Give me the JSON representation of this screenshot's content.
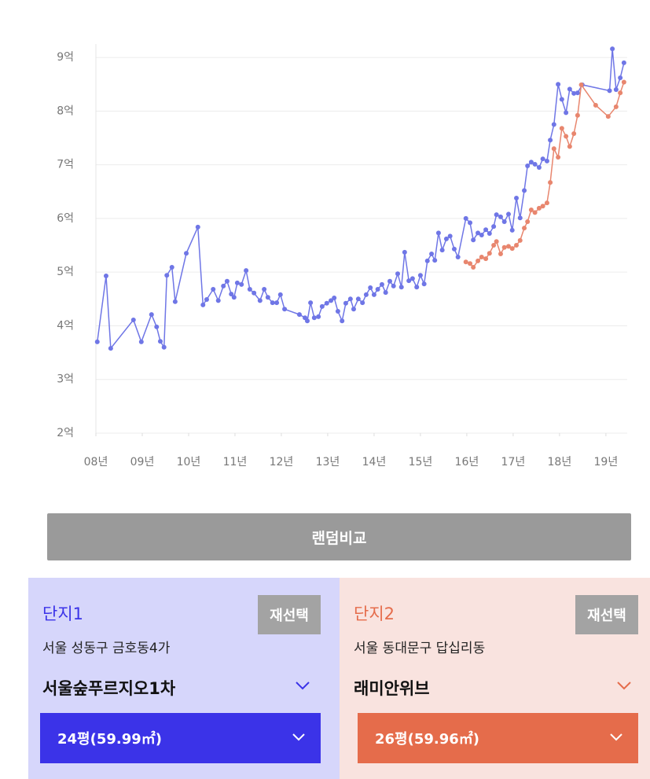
{
  "chart_data": {
    "type": "line",
    "xlim": [
      2008,
      2019.46
    ],
    "ylim": [
      2,
      9.25
    ],
    "xticks": [
      {
        "value": 2008,
        "label": "08년"
      },
      {
        "value": 2009,
        "label": "09년"
      },
      {
        "value": 2010,
        "label": "10년"
      },
      {
        "value": 2011,
        "label": "11년"
      },
      {
        "value": 2012,
        "label": "12년"
      },
      {
        "value": 2013,
        "label": "13년"
      },
      {
        "value": 2014,
        "label": "14년"
      },
      {
        "value": 2015,
        "label": "15년"
      },
      {
        "value": 2016,
        "label": "16년"
      },
      {
        "value": 2017,
        "label": "17년"
      },
      {
        "value": 2018,
        "label": "18년"
      },
      {
        "value": 2019,
        "label": "19년"
      }
    ],
    "yticks": [
      {
        "value": 2,
        "label": "2억"
      },
      {
        "value": 3,
        "label": "3억"
      },
      {
        "value": 4,
        "label": "4억"
      },
      {
        "value": 5,
        "label": "5억"
      },
      {
        "value": 6,
        "label": "6억"
      },
      {
        "value": 7,
        "label": "7억"
      },
      {
        "value": 8,
        "label": "8억"
      },
      {
        "value": 9,
        "label": "9억"
      }
    ],
    "grid": true,
    "series": [
      {
        "color": "#6f76e6",
        "x": [
          2008.03,
          2008.22,
          2008.32,
          2008.81,
          2008.98,
          2009.2,
          2009.31,
          2009.39,
          2009.47,
          2009.53,
          2009.64,
          2009.71,
          2009.95,
          2010.2,
          2010.31,
          2010.39,
          2010.53,
          2010.64,
          2010.75,
          2010.83,
          2010.92,
          2010.98,
          2011.05,
          2011.14,
          2011.24,
          2011.32,
          2011.41,
          2011.54,
          2011.63,
          2011.71,
          2011.81,
          2011.9,
          2011.98,
          2012.07,
          2012.39,
          2012.51,
          2012.56,
          2012.63,
          2012.71,
          2012.8,
          2012.88,
          2012.98,
          2013.07,
          2013.14,
          2013.22,
          2013.31,
          2013.39,
          2013.49,
          2013.56,
          2013.66,
          2013.75,
          2013.83,
          2013.92,
          2014.0,
          2014.08,
          2014.17,
          2014.25,
          2014.34,
          2014.42,
          2014.51,
          2014.59,
          2014.66,
          2014.75,
          2014.83,
          2014.92,
          2015.0,
          2015.08,
          2015.15,
          2015.24,
          2015.31,
          2015.39,
          2015.47,
          2015.56,
          2015.64,
          2015.73,
          2015.81,
          2015.98,
          2016.07,
          2016.14,
          2016.24,
          2016.32,
          2016.41,
          2016.49,
          2016.58,
          2016.64,
          2016.73,
          2016.81,
          2016.9,
          2016.98,
          2017.07,
          2017.15,
          2017.24,
          2017.31,
          2017.39,
          2017.47,
          2017.56,
          2017.64,
          2017.73,
          2017.8,
          2017.88,
          2017.97,
          2018.05,
          2018.14,
          2018.22,
          2018.31,
          2018.39,
          2018.49,
          2019.08,
          2019.14,
          2019.22,
          2019.31,
          2019.39
        ],
        "values": [
          3.7,
          4.93,
          3.58,
          4.11,
          3.7,
          4.21,
          3.98,
          3.71,
          3.6,
          4.94,
          5.09,
          4.45,
          5.35,
          5.84,
          4.39,
          4.49,
          4.68,
          4.47,
          4.74,
          4.83,
          4.59,
          4.53,
          4.8,
          4.77,
          5.03,
          4.68,
          4.61,
          4.47,
          4.68,
          4.53,
          4.43,
          4.43,
          4.58,
          4.31,
          4.21,
          4.15,
          4.09,
          4.43,
          4.15,
          4.17,
          4.36,
          4.42,
          4.47,
          4.52,
          4.27,
          4.09,
          4.42,
          4.5,
          4.31,
          4.5,
          4.43,
          4.58,
          4.71,
          4.58,
          4.68,
          4.77,
          4.62,
          4.83,
          4.74,
          4.97,
          4.72,
          5.37,
          4.84,
          4.88,
          4.72,
          4.94,
          4.78,
          5.21,
          5.34,
          5.22,
          5.73,
          5.41,
          5.62,
          5.67,
          5.43,
          5.28,
          6.0,
          5.92,
          5.6,
          5.73,
          5.69,
          5.79,
          5.72,
          5.85,
          6.07,
          6.03,
          5.94,
          6.08,
          5.78,
          6.38,
          6.01,
          6.52,
          6.98,
          7.05,
          7.01,
          6.95,
          7.11,
          7.07,
          7.46,
          7.75,
          8.5,
          8.22,
          7.97,
          8.41,
          8.33,
          8.34,
          8.49,
          8.38,
          9.16,
          8.4,
          8.62,
          8.9
        ]
      },
      {
        "color": "#e8866e",
        "x": [
          2015.98,
          2016.07,
          2016.14,
          2016.24,
          2016.32,
          2016.41,
          2016.49,
          2016.58,
          2016.64,
          2016.73,
          2016.81,
          2016.9,
          2016.98,
          2017.07,
          2017.15,
          2017.24,
          2017.31,
          2017.39,
          2017.47,
          2017.56,
          2017.64,
          2017.73,
          2017.8,
          2017.88,
          2017.97,
          2018.05,
          2018.14,
          2018.22,
          2018.31,
          2018.39,
          2018.47,
          2018.78,
          2019.05,
          2019.22,
          2019.31,
          2019.39
        ],
        "values": [
          5.19,
          5.16,
          5.09,
          5.21,
          5.28,
          5.25,
          5.35,
          5.5,
          5.57,
          5.34,
          5.46,
          5.48,
          5.44,
          5.5,
          5.59,
          5.82,
          5.94,
          6.16,
          6.11,
          6.19,
          6.23,
          6.29,
          6.67,
          7.3,
          7.14,
          7.68,
          7.53,
          7.34,
          7.58,
          7.92,
          8.49,
          8.11,
          7.9,
          8.08,
          8.34,
          8.54
        ]
      }
    ]
  },
  "button": "랜덤비교",
  "panels": [
    {
      "title": "단지1",
      "reselect": "재선택",
      "address": "서울 성동구 금호동4가",
      "name": "서울숲푸르지오1차",
      "size": "24평(59.99㎡)"
    },
    {
      "title": "단지2",
      "reselect": "재선택",
      "address": "서울 동대문구 답십리동",
      "name": "래미안위브",
      "size": "26평(59.96㎡)"
    }
  ]
}
